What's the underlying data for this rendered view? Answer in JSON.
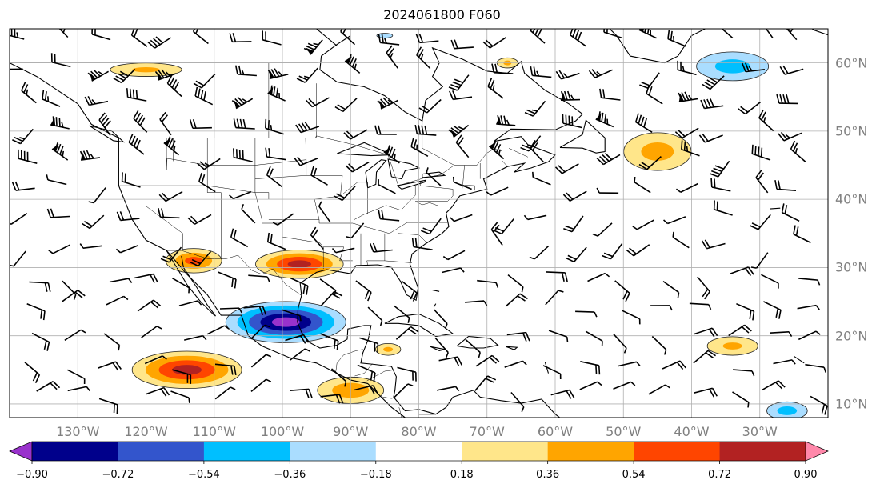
{
  "title": "2024061800 F060",
  "map": {
    "projection": "PlateCarree",
    "lon_range": [
      -140,
      -20
    ],
    "lat_range": [
      8,
      65
    ],
    "lon_labels": [
      {
        "lon": -130,
        "text": "130°W"
      },
      {
        "lon": -120,
        "text": "120°W"
      },
      {
        "lon": -110,
        "text": "110°W"
      },
      {
        "lon": -100,
        "text": "100°W"
      },
      {
        "lon": -90,
        "text": "90°W"
      },
      {
        "lon": -80,
        "text": "80°W"
      },
      {
        "lon": -70,
        "text": "70°W"
      },
      {
        "lon": -60,
        "text": "60°W"
      },
      {
        "lon": -50,
        "text": "50°W"
      },
      {
        "lon": -40,
        "text": "40°W"
      },
      {
        "lon": -30,
        "text": "30°W"
      }
    ],
    "lat_labels": [
      {
        "lat": 60,
        "text": "60°N"
      },
      {
        "lat": 50,
        "text": "50°N"
      },
      {
        "lat": 40,
        "text": "40°N"
      },
      {
        "lat": 30,
        "text": "30°N"
      },
      {
        "lat": 20,
        "text": "20°N"
      },
      {
        "lat": 10,
        "text": "10°N"
      }
    ],
    "grid": true,
    "colors": {
      "coast": "#000000",
      "grid": "#b0b0b0",
      "barb": "#000000"
    }
  },
  "colorbar": {
    "levels": [
      -0.9,
      -0.72,
      -0.54,
      -0.36,
      -0.18,
      0.18,
      0.36,
      0.54,
      0.72,
      0.9
    ],
    "tick_labels": [
      "−0.90",
      "−0.72",
      "−0.54",
      "−0.36",
      "−0.18",
      "0.18",
      "0.36",
      "0.54",
      "0.72",
      "0.90"
    ],
    "colors": [
      "#9932cc",
      "#00008b",
      "#3355cc",
      "#00bfff",
      "#aaddff",
      "#ffffff",
      "#ffe68a",
      "#ffa500",
      "#ff4500",
      "#b22222",
      "#ff88aa"
    ],
    "extend": "both"
  },
  "chart_data": {
    "type": "contourf",
    "title": "2024061800 F060",
    "field_levels": [
      -0.9,
      -0.72,
      -0.54,
      -0.36,
      -0.18,
      0.18,
      0.36,
      0.54,
      0.72,
      0.9
    ],
    "blobs": [
      {
        "name": "gulf-of-mexico-negative",
        "lon": -99.5,
        "lat": 22.0,
        "rx": 10.5,
        "ry": 3.6,
        "peak": -0.95
      },
      {
        "name": "texas-positive",
        "lon": -97.5,
        "lat": 30.5,
        "rx": 8.0,
        "ry": 2.6,
        "peak": 0.78
      },
      {
        "name": "southwest-positive",
        "lon": -113.0,
        "lat": 31.0,
        "rx": 5.5,
        "ry": 2.4,
        "peak": 0.6
      },
      {
        "name": "eastern-pacific-positive",
        "lon": -114.0,
        "lat": 15.0,
        "rx": 10.0,
        "ry": 3.4,
        "peak": 0.78
      },
      {
        "name": "canada-positive",
        "lon": -120.0,
        "lat": 59.0,
        "rx": 8.5,
        "ry": 1.6,
        "peak": 0.4
      },
      {
        "name": "north-atlantic-negative",
        "lon": -34.0,
        "lat": 59.5,
        "rx": 8.0,
        "ry": 3.2,
        "peak": -0.45
      },
      {
        "name": "mid-atlantic-positive",
        "lon": -45.0,
        "lat": 47.0,
        "rx": 7.5,
        "ry": 4.2,
        "peak": 0.45
      },
      {
        "name": "tropical-atlantic-positive",
        "lon": -34.0,
        "lat": 18.5,
        "rx": 6.0,
        "ry": 2.2,
        "peak": 0.4
      },
      {
        "name": "far-southeast-negative",
        "lon": -26.0,
        "lat": 9.0,
        "rx": 4.5,
        "ry": 2.0,
        "peak": -0.45
      },
      {
        "name": "carribean-positive",
        "lon": -84.5,
        "lat": 18.0,
        "rx": 3.0,
        "ry": 1.4,
        "peak": 0.4
      },
      {
        "name": "mexico-south-positive",
        "lon": -90.0,
        "lat": 12.0,
        "rx": 7.0,
        "ry": 2.8,
        "peak": 0.5
      },
      {
        "name": "hudson-positive",
        "lon": -67.0,
        "lat": 60.0,
        "rx": 2.5,
        "ry": 1.2,
        "peak": 0.4
      },
      {
        "name": "labrador-negative",
        "lon": -85.0,
        "lat": 64.0,
        "rx": 3.0,
        "ry": 0.8,
        "peak": -0.25
      }
    ]
  }
}
